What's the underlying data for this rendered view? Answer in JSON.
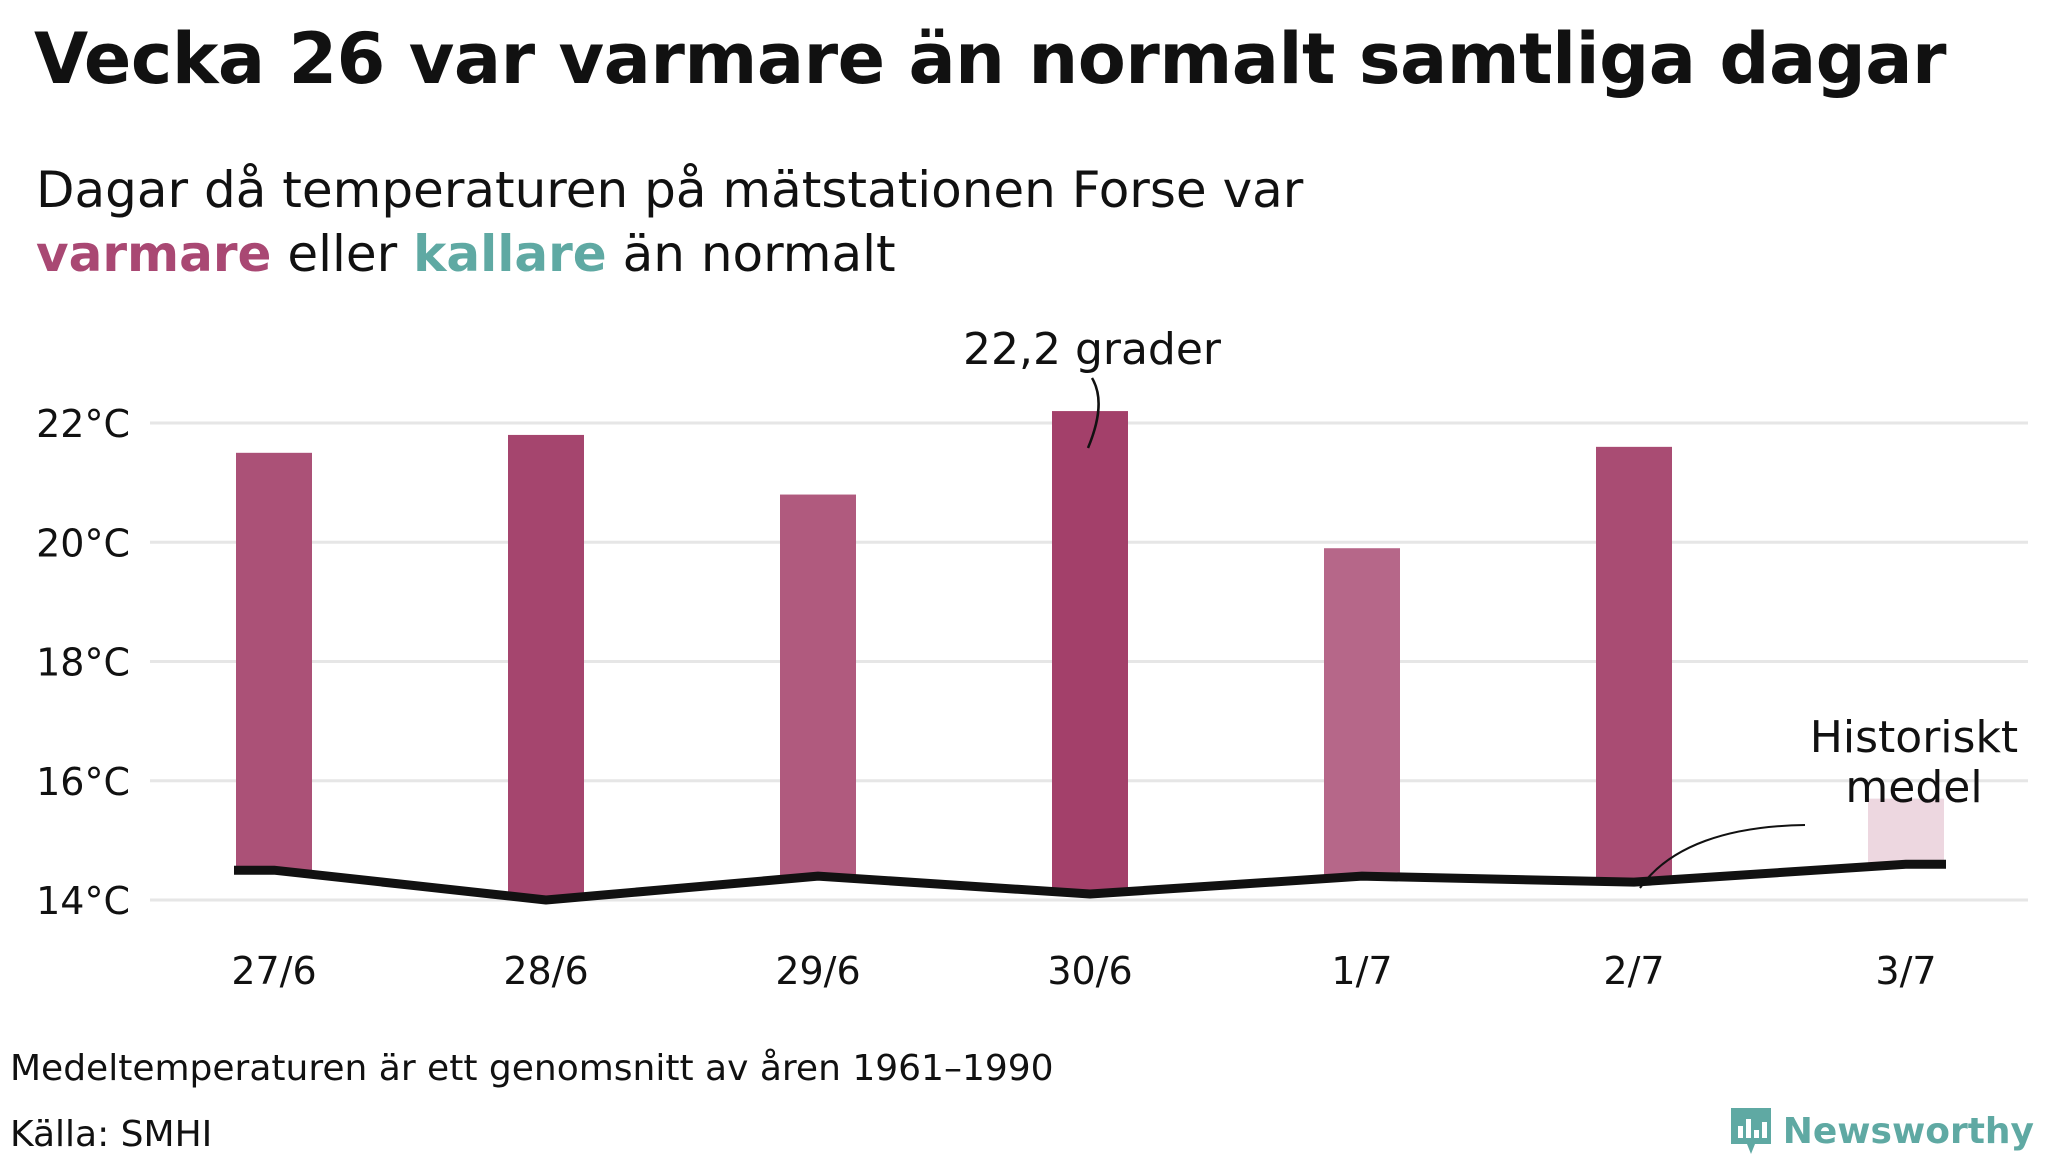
{
  "header": {
    "title": "Vecka 26 var varmare än normalt samtliga dagar",
    "subtitle_line1": "Dagar då temperaturen på mätstationen Forse var",
    "subtitle_warm": "varmare",
    "subtitle_mid": "eller",
    "subtitle_cold": "kallare",
    "subtitle_end": "än normalt"
  },
  "chart_data": {
    "type": "bar",
    "categories": [
      "27/6",
      "28/6",
      "29/6",
      "30/6",
      "1/7",
      "2/7",
      "3/7"
    ],
    "series": [
      {
        "values": [
          21.5,
          21.8,
          20.8,
          22.2,
          19.9,
          21.6,
          15.7
        ]
      }
    ],
    "normal": [
      14.5,
      14.0,
      14.4,
      14.1,
      14.4,
      14.3,
      14.6
    ],
    "y_ticks": [
      "22°C",
      "20°C",
      "18°C",
      "16°C",
      "14°C"
    ],
    "y_tick_values": [
      22,
      20,
      18,
      16,
      14
    ],
    "ylim": [
      14,
      22.2
    ],
    "grid": true,
    "annotations": {
      "max_label": "22,2 grader",
      "normal_label_line1": "Historiskt",
      "normal_label_line2": "medel"
    },
    "colors": {
      "warm_strong": "#a3406a",
      "warm_light": "#f3e3ea",
      "cold": "#5fa9a3",
      "normal_line": "#111111",
      "grid": "#e6e6e6"
    }
  },
  "footer": {
    "note": "Medeltemperaturen är ett genomsnitt av åren 1961–1990",
    "source": "Källa: SMHI",
    "brand": "Newsworthy",
    "brand_icon": "newsworthy-logo-icon"
  }
}
